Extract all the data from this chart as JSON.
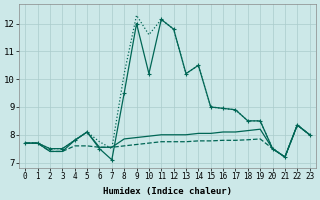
{
  "xlabel": "Humidex (Indice chaleur)",
  "background_color": "#cce8e8",
  "grid_color": "#aacccc",
  "line_color": "#006655",
  "xlim": [
    -0.5,
    23.5
  ],
  "ylim": [
    6.8,
    12.7
  ],
  "yticks": [
    7,
    8,
    9,
    10,
    11,
    12
  ],
  "xticks": [
    0,
    1,
    2,
    3,
    4,
    5,
    6,
    7,
    8,
    9,
    10,
    11,
    12,
    13,
    14,
    15,
    16,
    17,
    18,
    19,
    20,
    21,
    22,
    23
  ],
  "series": [
    {
      "x": [
        0,
        1,
        2,
        3,
        4,
        5,
        6,
        7,
        8,
        9,
        10,
        11,
        12,
        13,
        14,
        15,
        16,
        17,
        18,
        19,
        20,
        21,
        22,
        23
      ],
      "y": [
        7.7,
        7.7,
        7.5,
        7.5,
        7.8,
        8.1,
        7.5,
        7.1,
        9.5,
        12.0,
        10.2,
        12.15,
        11.8,
        10.2,
        10.5,
        9.0,
        8.95,
        8.9,
        8.5,
        8.5,
        7.5,
        7.2,
        8.35,
        8.0
      ],
      "linestyle": "-",
      "marker": "+"
    },
    {
      "x": [
        0,
        1,
        2,
        3,
        4,
        5,
        6,
        7,
        8,
        9,
        10,
        11,
        12,
        13,
        14,
        15,
        16,
        17,
        18,
        19,
        20,
        21,
        22,
        23
      ],
      "y": [
        7.7,
        7.7,
        7.5,
        7.5,
        7.8,
        8.1,
        7.75,
        7.5,
        10.2,
        12.3,
        11.6,
        12.15,
        11.8,
        10.2,
        10.5,
        9.0,
        8.95,
        8.9,
        8.5,
        8.5,
        7.5,
        7.2,
        8.35,
        8.0
      ],
      "linestyle": ":",
      "marker": null
    },
    {
      "x": [
        0,
        1,
        2,
        3,
        4,
        5,
        6,
        7,
        8,
        9,
        10,
        11,
        12,
        13,
        14,
        15,
        16,
        17,
        18,
        19,
        20,
        21,
        22,
        23
      ],
      "y": [
        7.7,
        7.7,
        7.4,
        7.4,
        7.8,
        8.1,
        7.55,
        7.55,
        7.85,
        7.9,
        7.95,
        8.0,
        8.0,
        8.0,
        8.05,
        8.05,
        8.1,
        8.1,
        8.15,
        8.2,
        7.5,
        7.2,
        8.35,
        8.0
      ],
      "linestyle": "-",
      "marker": null
    },
    {
      "x": [
        0,
        1,
        2,
        3,
        4,
        5,
        6,
        7,
        8,
        9,
        10,
        11,
        12,
        13,
        14,
        15,
        16,
        17,
        18,
        19,
        20,
        21,
        22,
        23
      ],
      "y": [
        7.7,
        7.7,
        7.4,
        7.4,
        7.6,
        7.6,
        7.55,
        7.55,
        7.6,
        7.65,
        7.7,
        7.75,
        7.75,
        7.75,
        7.78,
        7.78,
        7.8,
        7.8,
        7.82,
        7.85,
        7.5,
        7.2,
        8.35,
        8.0
      ],
      "linestyle": "--",
      "marker": null
    }
  ]
}
